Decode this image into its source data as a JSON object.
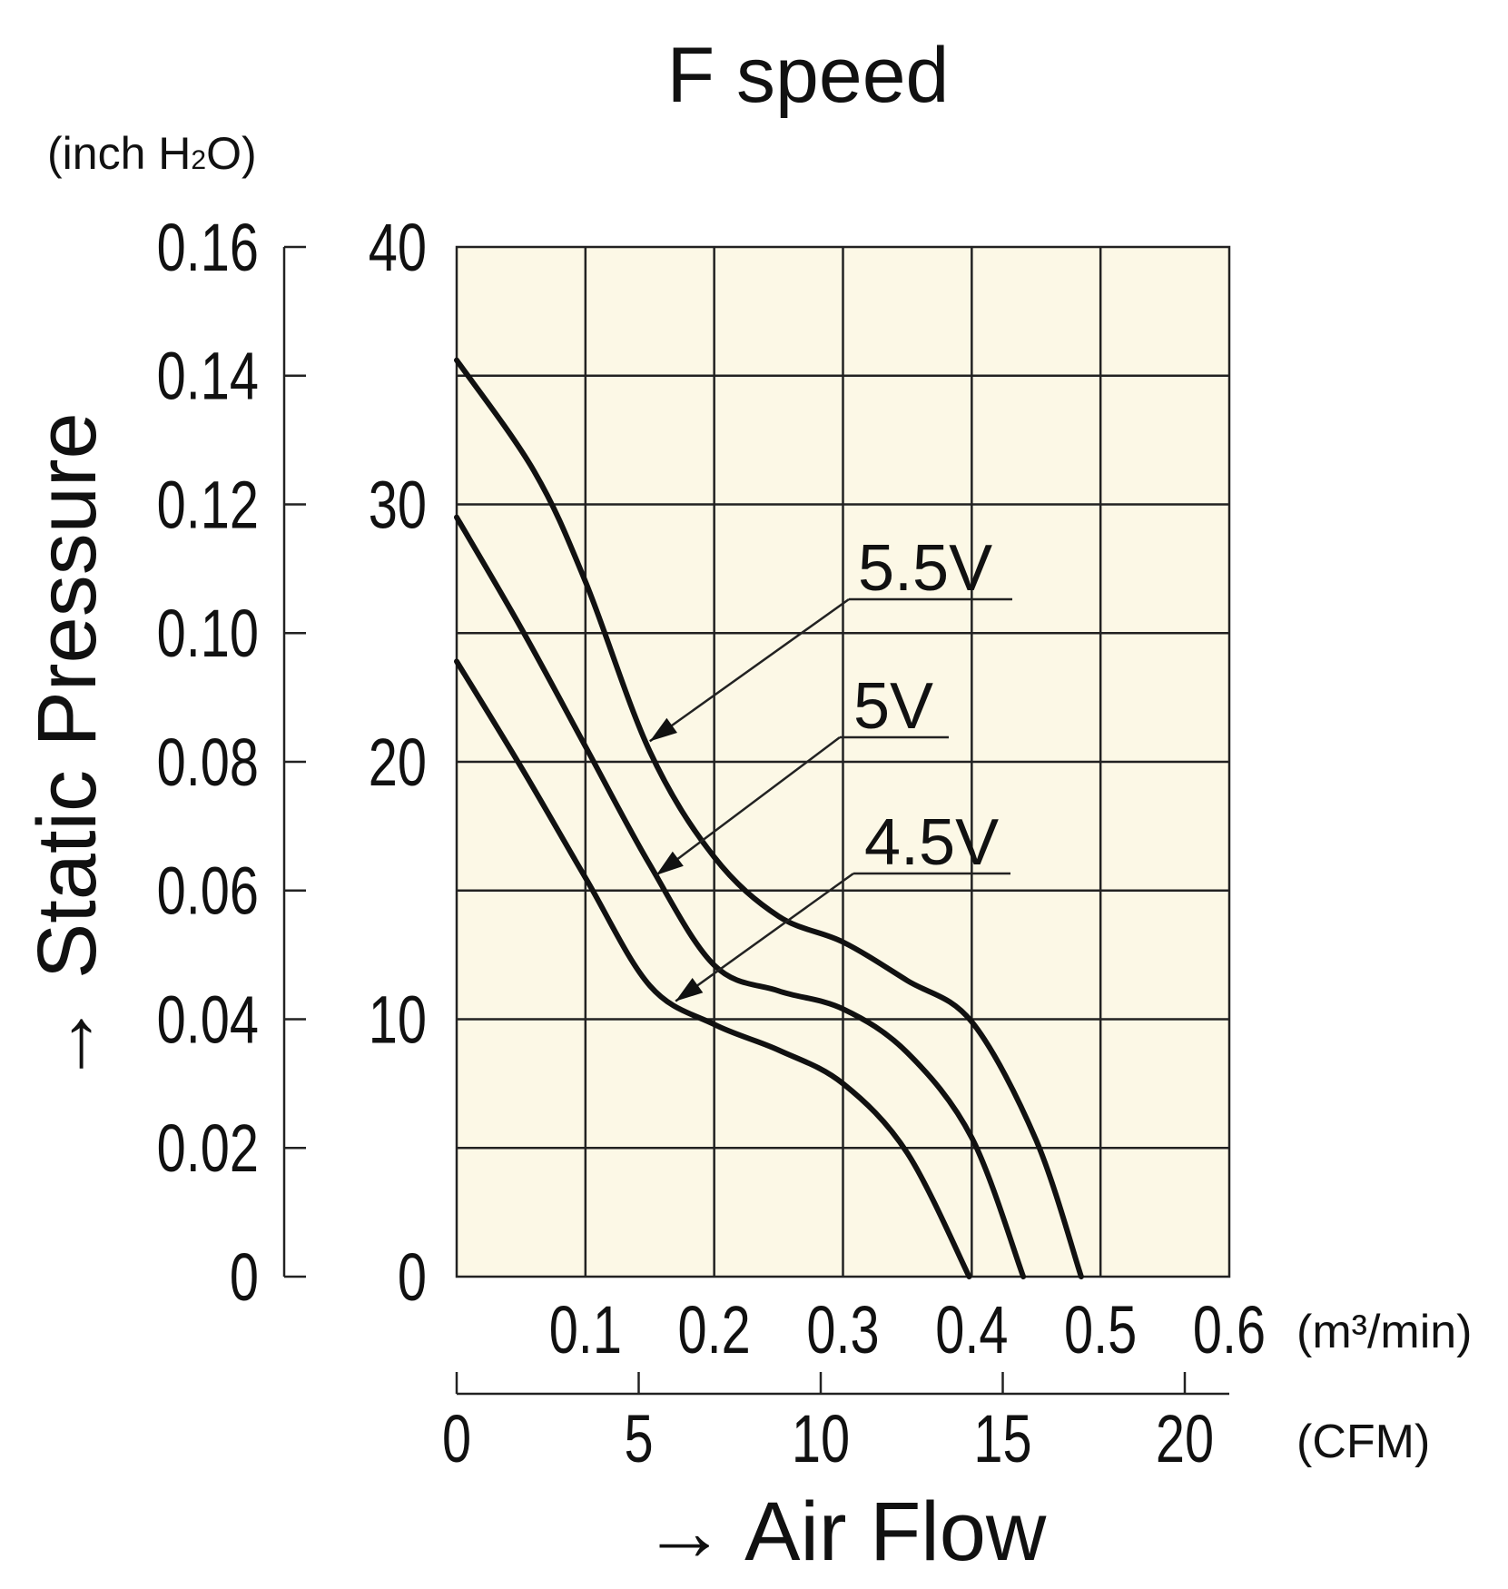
{
  "chart_data": {
    "type": "line",
    "title": "F speed",
    "xlabel": "→ Air Flow",
    "ylabel": "→ Static Pressure",
    "x_unit": "(m³/min)",
    "x2_unit": "(CFM)",
    "y2_unit_prefix": "(inch H",
    "y2_unit_sub": "2",
    "y2_unit_suffix": "O)",
    "xlim": [
      0,
      0.6
    ],
    "ylim": [
      0,
      40
    ],
    "x_ticks": [
      "0.1",
      "0.2",
      "0.3",
      "0.4",
      "0.5",
      "0.6"
    ],
    "x2_ticks": [
      "0",
      "5",
      "10",
      "15",
      "20"
    ],
    "y_ticks": [
      "0",
      "10",
      "20",
      "30",
      "40"
    ],
    "y2_ticks": [
      "0",
      "0.02",
      "0.04",
      "0.06",
      "0.08",
      "0.10",
      "0.12",
      "0.14",
      "0.16"
    ],
    "grid": true,
    "plot_bg": "#fcf8e6",
    "line_color": "#111111",
    "series": [
      {
        "name": "5.5V",
        "x": [
          0,
          0.06,
          0.1,
          0.15,
          0.2,
          0.25,
          0.3,
          0.35,
          0.4,
          0.45,
          0.485
        ],
        "y": [
          35.6,
          31.3,
          27.0,
          20.4,
          16.3,
          14.0,
          13.0,
          11.5,
          9.9,
          5.3,
          0
        ]
      },
      {
        "name": "5V",
        "x": [
          0,
          0.05,
          0.1,
          0.15,
          0.2,
          0.25,
          0.3,
          0.35,
          0.4,
          0.44
        ],
        "y": [
          29.5,
          25.2,
          20.6,
          16.0,
          12.1,
          11.1,
          10.4,
          8.7,
          5.4,
          0
        ]
      },
      {
        "name": "4.5V",
        "x": [
          0,
          0.05,
          0.1,
          0.15,
          0.2,
          0.25,
          0.3,
          0.35,
          0.398
        ],
        "y": [
          23.9,
          19.8,
          15.5,
          11.3,
          9.8,
          8.8,
          7.5,
          4.8,
          0
        ]
      }
    ],
    "annotations": [
      {
        "label": "5.5V",
        "target_x": 0.15,
        "target_y": 20.8
      },
      {
        "label": "5V",
        "target_x": 0.155,
        "target_y": 15.6
      },
      {
        "label": "4.5V",
        "target_x": 0.17,
        "target_y": 10.7
      }
    ]
  }
}
